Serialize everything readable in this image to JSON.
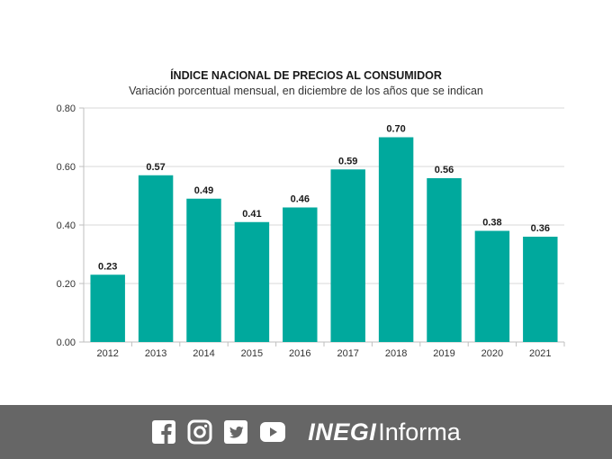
{
  "chart_data": {
    "type": "bar",
    "title": "ÍNDICE NACIONAL DE PRECIOS AL CONSUMIDOR",
    "subtitle": "Variación porcentual mensual, en diciembre de los años que se indican",
    "categories": [
      "2012",
      "2013",
      "2014",
      "2015",
      "2016",
      "2017",
      "2018",
      "2019",
      "2020",
      "2021"
    ],
    "values": [
      0.23,
      0.57,
      0.49,
      0.41,
      0.46,
      0.59,
      0.7,
      0.56,
      0.38,
      0.36
    ],
    "value_labels": [
      "0.23",
      "0.57",
      "0.49",
      "0.41",
      "0.46",
      "0.59",
      "0.70",
      "0.56",
      "0.38",
      "0.36"
    ],
    "yticks": [
      "0.00",
      "0.20",
      "0.40",
      "0.60",
      "0.80"
    ],
    "ylim": [
      0,
      0.8
    ],
    "xlabel": "",
    "ylabel": "",
    "grid": true,
    "bar_color": "#00A99D"
  },
  "footer": {
    "icons": [
      "facebook-icon",
      "instagram-icon",
      "twitter-icon",
      "youtube-icon"
    ],
    "brand_strong": "INEGI",
    "brand_light": "Informa",
    "background": "#666666"
  }
}
